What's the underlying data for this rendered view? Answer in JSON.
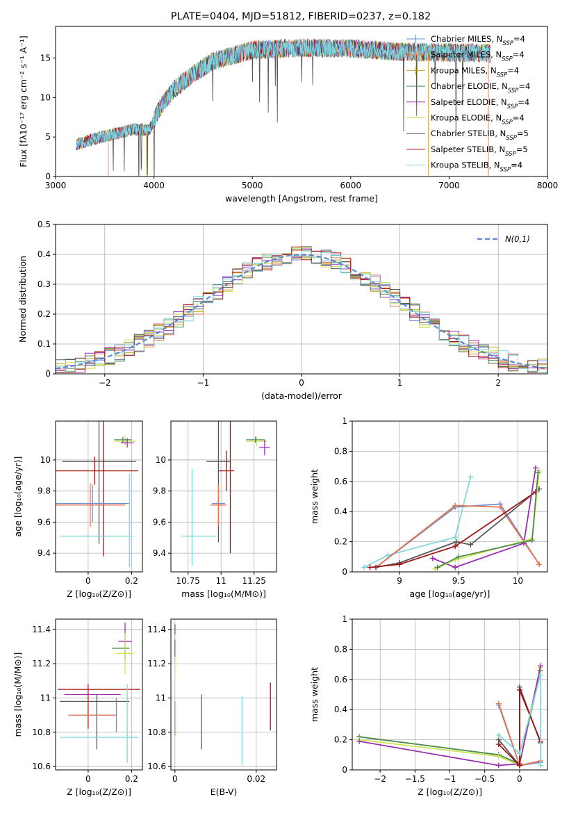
{
  "figure_title": "PLATE=0404, MJD=51812, FIBERID=0237, z=0.182",
  "colors": {
    "chabrier_miles": "#6a8fd6",
    "salpeter_miles": "#e9764f",
    "kroupa_miles": "#c9a22a",
    "chabrier_elodie": "#4f8a4f",
    "salpeter_elodie": "#9a2fb3",
    "kroupa_elodie": "#c8e64f",
    "chabrier_stelib": "#595959",
    "salpeter_stelib": "#a31414",
    "kroupa_stelib": "#82d7dc",
    "gauss": "#5b87d6"
  },
  "legend_entries": [
    {
      "key": "chabrier_miles",
      "name": "Chabrier MILES, N",
      "sub": "SSP",
      "suffix": "=4",
      "marker": true
    },
    {
      "key": "salpeter_miles",
      "name": "Salpeter MILES, N",
      "sub": "SSP",
      "suffix": "=4",
      "marker": true
    },
    {
      "key": "kroupa_miles",
      "name": "Kroupa MILES, N",
      "sub": "SSP",
      "suffix": "=4",
      "marker": true
    },
    {
      "key": "chabrier_elodie",
      "name": "Chabrier ELODIE, N",
      "sub": "SSP",
      "suffix": "=4",
      "marker": false
    },
    {
      "key": "salpeter_elodie",
      "name": "Salpeter ELODIE, N",
      "sub": "SSP",
      "suffix": "=4",
      "marker": false
    },
    {
      "key": "kroupa_elodie",
      "name": "Kroupa ELODIE, N",
      "sub": "SSP",
      "suffix": "=4",
      "marker": false
    },
    {
      "key": "chabrier_stelib",
      "name": "Chabrier STELIB, N",
      "sub": "SSP",
      "suffix": "=5",
      "marker": false
    },
    {
      "key": "salpeter_stelib",
      "name": "Salpeter STELIB, N",
      "sub": "SSP",
      "suffix": "=5",
      "marker": false
    },
    {
      "key": "kroupa_stelib",
      "name": "Kroupa STELIB, N",
      "sub": "SSP",
      "suffix": "=4",
      "marker": false
    }
  ],
  "chart_data": [
    {
      "id": "spectrum",
      "type": "line",
      "xlabel": "wavelength [Angstrom, rest frame]",
      "ylabel": "Flux [fλ10⁻¹⁷ erg cm⁻² s⁻¹ A⁻¹]",
      "xlim": [
        3000,
        8000
      ],
      "ylim": [
        0,
        19
      ],
      "xticks": [
        3000,
        4000,
        5000,
        6000,
        7000,
        8000
      ],
      "yticks": [
        0,
        5,
        10,
        15
      ],
      "grid": false,
      "legend_placement": "right",
      "continuum": {
        "x": [
          3200,
          3400,
          3600,
          3800,
          3950,
          4050,
          4200,
          4400,
          4600,
          4800,
          5000,
          5500,
          6000,
          6500,
          7000,
          7400
        ],
        "y": [
          4.0,
          4.8,
          5.4,
          6.0,
          5.8,
          8.5,
          11.0,
          13.0,
          14.6,
          15.3,
          16.0,
          16.3,
          16.2,
          15.8,
          15.7,
          15.6
        ]
      }
    },
    {
      "id": "residuals",
      "type": "histogram",
      "xlabel": "(data-model)/error",
      "ylabel": "Normed distribution",
      "xlim": [
        -2.5,
        2.5
      ],
      "ylim": [
        0,
        0.5
      ],
      "xticks": [
        -2,
        -1,
        0,
        1,
        2
      ],
      "yticks": [
        0,
        0.1,
        0.2,
        0.3,
        0.4,
        0.5
      ],
      "grid": true,
      "legend_placement": "top-right",
      "gauss_label": "N(0,1)",
      "bin_width": 0.1
    },
    {
      "id": "age_vs_Z",
      "type": "scatter",
      "xlabel": "Z [log₁₀(Z/Z⊙)]",
      "ylabel": "age  [log₁₀(age/yr)]",
      "xlim": [
        -0.15,
        0.25
      ],
      "ylim": [
        9.28,
        10.25
      ],
      "xticks": [
        0.0,
        0.2
      ],
      "yticks": [
        9.4,
        9.6,
        9.8,
        10.0
      ],
      "grid": true,
      "errorbars": [
        {
          "key": "kroupa_elodie",
          "x": 0.17,
          "y": 10.12,
          "xerr": 0.05,
          "yerr": 0.03
        },
        {
          "key": "chabrier_elodie",
          "x": 0.16,
          "y": 10.13,
          "xerr": 0.04,
          "yerr": 0.02
        },
        {
          "key": "salpeter_elodie",
          "x": 0.18,
          "y": 10.11,
          "xerr": 0.03,
          "yerr": 0.03
        },
        {
          "key": "chabrier_stelib",
          "x": 0.05,
          "y": 9.99,
          "xerr": 0.17,
          "yerr": 0.53
        },
        {
          "key": "salpeter_stelib",
          "x": 0.03,
          "y": 9.93,
          "xerr": 0.2,
          "yerr": 0.09
        },
        {
          "key": "salpeter_stelib",
          "x": 0.07,
          "y": 9.88,
          "xerr": 0.0,
          "yerr": 0.5
        },
        {
          "key": "chabrier_miles",
          "x": 0.02,
          "y": 9.72,
          "xerr": 0.17,
          "yerr": 0.12
        },
        {
          "key": "salpeter_miles",
          "x": 0.01,
          "y": 9.71,
          "xerr": 0.16,
          "yerr": 0.14
        },
        {
          "key": "kroupa_stelib",
          "x": 0.04,
          "y": 9.51,
          "xerr": 0.17,
          "yerr": 0.0
        },
        {
          "key": "kroupa_stelib",
          "x": 0.19,
          "y": 9.61,
          "xerr": 0.0,
          "yerr": 0.3
        }
      ]
    },
    {
      "id": "age_vs_mass",
      "type": "scatter",
      "xlabel": "mass [log₁₀(M/M⊙)]",
      "ylabel": "",
      "xlim": [
        10.62,
        11.42
      ],
      "ylim": [
        9.28,
        10.25
      ],
      "xticks": [
        10.75,
        11.0,
        11.25
      ],
      "yticks": [
        9.4,
        9.6,
        9.8,
        10.0
      ],
      "grid": true,
      "errorbars": [
        {
          "key": "kroupa_elodie",
          "x": 11.27,
          "y": 10.12,
          "xerr": 0.08,
          "yerr": 0.03
        },
        {
          "key": "chabrier_elodie",
          "x": 11.26,
          "y": 10.13,
          "xerr": 0.07,
          "yerr": 0.02
        },
        {
          "key": "salpeter_elodie",
          "x": 11.33,
          "y": 10.08,
          "xerr": 0.04,
          "yerr": 0.05
        },
        {
          "key": "chabrier_stelib",
          "x": 10.98,
          "y": 9.99,
          "xerr": 0.09,
          "yerr": 0.52
        },
        {
          "key": "salpeter_stelib",
          "x": 11.04,
          "y": 9.93,
          "xerr": 0.06,
          "yerr": 0.13
        },
        {
          "key": "salpeter_stelib",
          "x": 11.07,
          "y": 9.85,
          "xerr": 0.0,
          "yerr": 0.45
        },
        {
          "key": "chabrier_miles",
          "x": 10.98,
          "y": 9.72,
          "xerr": 0.05,
          "yerr": 0.12
        },
        {
          "key": "salpeter_miles",
          "x": 10.98,
          "y": 9.71,
          "xerr": 0.06,
          "yerr": 0.13
        },
        {
          "key": "kroupa_stelib",
          "x": 10.83,
          "y": 9.51,
          "xerr": 0.13,
          "yerr": 0.0
        },
        {
          "key": "kroupa_stelib",
          "x": 10.78,
          "y": 9.63,
          "xerr": 0.0,
          "yerr": 0.31
        }
      ]
    },
    {
      "id": "weight_vs_age",
      "type": "line",
      "xlabel": "age  [log₁₀(age/yr)]",
      "ylabel": "mass weight",
      "xlim": [
        8.6,
        10.25
      ],
      "ylim": [
        0,
        1
      ],
      "xticks": [
        9.0,
        9.5,
        10.0
      ],
      "yticks": [
        0.0,
        0.2,
        0.4,
        0.6,
        0.8,
        1.0
      ],
      "grid": true,
      "series": [
        {
          "key": "kroupa_stelib",
          "x": [
            8.7,
            8.9,
            9.47,
            9.6
          ],
          "y": [
            0.03,
            0.11,
            0.23,
            0.63
          ]
        },
        {
          "key": "chabrier_miles",
          "x": [
            8.8,
            9.47,
            9.85,
            10.18
          ],
          "y": [
            0.03,
            0.43,
            0.45,
            0.05
          ]
        },
        {
          "key": "salpeter_miles",
          "x": [
            8.8,
            9.47,
            9.85,
            10.18
          ],
          "y": [
            0.03,
            0.44,
            0.43,
            0.05
          ]
        },
        {
          "key": "chabrier_stelib",
          "x": [
            8.8,
            9.0,
            9.48,
            9.6,
            10.18
          ],
          "y": [
            0.03,
            0.06,
            0.2,
            0.18,
            0.55
          ]
        },
        {
          "key": "salpeter_stelib",
          "x": [
            8.75,
            9.0,
            9.47,
            10.15
          ],
          "y": [
            0.03,
            0.05,
            0.17,
            0.53
          ]
        },
        {
          "key": "salpeter_elodie",
          "x": [
            9.28,
            9.47,
            10.05,
            10.15
          ],
          "y": [
            0.09,
            0.03,
            0.19,
            0.69
          ]
        },
        {
          "key": "kroupa_elodie",
          "x": [
            9.3,
            9.47,
            10.12,
            10.18
          ],
          "y": [
            0.02,
            0.08,
            0.22,
            0.67
          ]
        },
        {
          "key": "chabrier_elodie",
          "x": [
            9.32,
            9.5,
            10.12,
            10.17
          ],
          "y": [
            0.03,
            0.1,
            0.21,
            0.66
          ]
        }
      ]
    },
    {
      "id": "mass_vs_Z",
      "type": "scatter",
      "xlabel": "Z [log₁₀(Z/Z⊙)]",
      "ylabel": "mass [log₁₀(M/M⊙)]",
      "xlim": [
        -0.15,
        0.25
      ],
      "ylim": [
        10.58,
        11.46
      ],
      "xticks": [
        0.0,
        0.2
      ],
      "yticks": [
        10.6,
        10.8,
        11.0,
        11.2,
        11.4
      ],
      "grid": true,
      "errorbars": [
        {
          "key": "salpeter_elodie",
          "x": 0.17,
          "y": 11.33,
          "xerr": 0.03,
          "yerr": 0.11
        },
        {
          "key": "chabrier_elodie",
          "x": 0.15,
          "y": 11.29,
          "xerr": 0.04,
          "yerr": 0.0
        },
        {
          "key": "kroupa_elodie",
          "x": 0.17,
          "y": 11.26,
          "xerr": 0.04,
          "yerr": 0.12
        },
        {
          "key": "salpeter_stelib",
          "x": 0.05,
          "y": 11.05,
          "xerr": 0.19,
          "yerr": 0.0
        },
        {
          "key": "salpeter_stelib",
          "x": 0.0,
          "y": 10.95,
          "xerr": 0.0,
          "yerr": 0.13
        },
        {
          "key": "salpeter_elodie",
          "x": 0.02,
          "y": 11.02,
          "xerr": 0.13,
          "yerr": 0.0
        },
        {
          "key": "chabrier_stelib",
          "x": 0.03,
          "y": 10.98,
          "xerr": 0.16,
          "yerr": 0.0
        },
        {
          "key": "chabrier_stelib",
          "x": 0.04,
          "y": 10.86,
          "xerr": 0.0,
          "yerr": 0.16
        },
        {
          "key": "chabrier_miles",
          "x": 0.02,
          "y": 10.9,
          "xerr": 0.11,
          "yerr": 0.0
        },
        {
          "key": "salpeter_miles",
          "x": 0.02,
          "y": 10.9,
          "xerr": 0.11,
          "yerr": 0.0
        },
        {
          "key": "chabrier_miles",
          "x": 0.13,
          "y": 10.9,
          "xerr": 0.0,
          "yerr": 0.1
        },
        {
          "key": "kroupa_stelib",
          "x": 0.05,
          "y": 10.77,
          "xerr": 0.18,
          "yerr": 0.0
        },
        {
          "key": "kroupa_stelib",
          "x": 0.18,
          "y": 10.85,
          "xerr": 0.0,
          "yerr": 0.23
        }
      ]
    },
    {
      "id": "mass_vs_ebv",
      "type": "scatter",
      "xlabel": "E(B-V)",
      "ylabel": "",
      "xlim": [
        -0.001,
        0.025
      ],
      "ylim": [
        10.58,
        11.46
      ],
      "xticks": [
        0.0,
        0.02
      ],
      "yticks": [
        10.6,
        10.8,
        11.0,
        11.2,
        11.4
      ],
      "grid": true,
      "errorbars": [
        {
          "key": "salpeter_elodie",
          "x": 0.0,
          "y": 11.32,
          "xerr": 0.0,
          "yerr": 0.11
        },
        {
          "key": "kroupa_elodie",
          "x": 0.0,
          "y": 11.25,
          "xerr": 0.0,
          "yerr": 0.12
        },
        {
          "key": "chabrier_elodie",
          "x": 0.0,
          "y": 11.29,
          "xerr": 0.0,
          "yerr": 0.05
        },
        {
          "key": "salpeter_miles",
          "x": 0.0,
          "y": 10.88,
          "xerr": 0.0,
          "yerr": 0.1
        },
        {
          "key": "chabrier_stelib",
          "x": 0.0065,
          "y": 10.86,
          "xerr": 0.0,
          "yerr": 0.16
        },
        {
          "key": "kroupa_stelib",
          "x": 0.0165,
          "y": 10.81,
          "xerr": 0.0,
          "yerr": 0.2
        },
        {
          "key": "salpeter_stelib",
          "x": 0.0235,
          "y": 10.95,
          "xerr": 0.0,
          "yerr": 0.14
        }
      ]
    },
    {
      "id": "weight_vs_Z",
      "type": "line",
      "xlabel": "Z [log₁₀(Z/Z⊙)]",
      "ylabel": "mass weight",
      "xlim": [
        -2.4,
        0.4
      ],
      "ylim": [
        0,
        1
      ],
      "xticks": [
        -2.0,
        -1.5,
        -1.0,
        -0.5,
        0.0
      ],
      "yticks": [
        0.0,
        0.2,
        0.4,
        0.6,
        0.8,
        1.0
      ],
      "grid": true,
      "series": [
        {
          "key": "chabrier_elodie",
          "x": [
            -2.3,
            -0.3,
            0.0,
            0.3
          ],
          "y": [
            0.22,
            0.1,
            0.04,
            0.66
          ]
        },
        {
          "key": "kroupa_elodie",
          "x": [
            -2.3,
            -0.3,
            0.0,
            0.3
          ],
          "y": [
            0.2,
            0.09,
            0.03,
            0.68
          ]
        },
        {
          "key": "salpeter_elodie",
          "x": [
            -2.3,
            -0.3,
            0.0,
            0.3
          ],
          "y": [
            0.19,
            0.03,
            0.04,
            0.69
          ]
        },
        {
          "key": "chabrier_miles",
          "x": [
            -0.3,
            0.0,
            0.3
          ],
          "y": [
            0.43,
            0.03,
            0.05
          ]
        },
        {
          "key": "salpeter_miles",
          "x": [
            -0.3,
            0.0,
            0.3
          ],
          "y": [
            0.44,
            0.03,
            0.06
          ]
        },
        {
          "key": "chabrier_stelib",
          "x": [
            -0.3,
            0.0,
            0.0,
            0.3
          ],
          "y": [
            0.2,
            0.03,
            0.55,
            0.18
          ]
        },
        {
          "key": "salpeter_stelib",
          "x": [
            -0.3,
            0.0,
            0.0,
            0.3
          ],
          "y": [
            0.17,
            0.03,
            0.53,
            0.19
          ]
        },
        {
          "key": "kroupa_stelib",
          "x": [
            -0.3,
            0.0,
            0.3,
            0.3
          ],
          "y": [
            0.23,
            0.11,
            0.63,
            0.03
          ]
        }
      ]
    }
  ]
}
